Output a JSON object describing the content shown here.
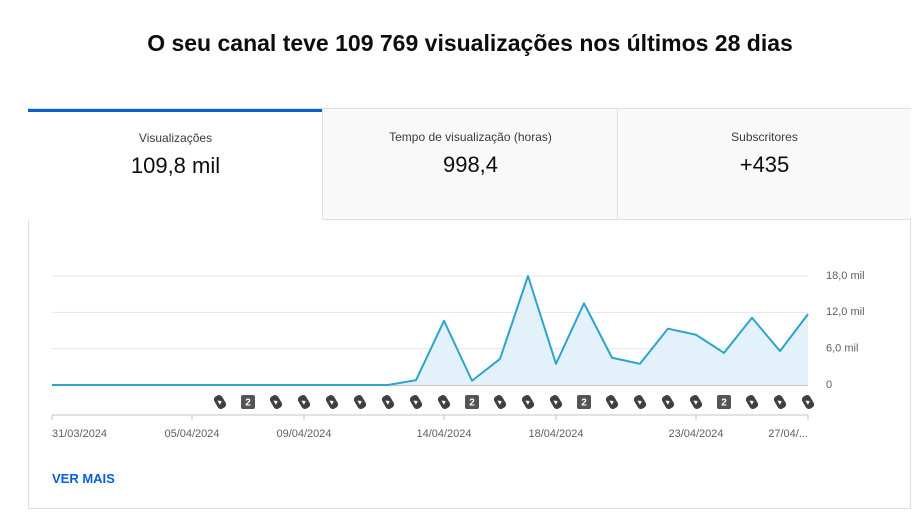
{
  "header": {
    "title": "O seu canal teve 109 769 visualizações nos últimos 28 dias"
  },
  "tabs": [
    {
      "label": "Visualizações",
      "value": "109,8 mil"
    },
    {
      "label": "Tempo de visualização (horas)",
      "value": "998,4"
    },
    {
      "label": "Subscritores",
      "value": "+435"
    }
  ],
  "chart_data": {
    "type": "area",
    "categories": [
      "31/03/2024",
      null,
      null,
      null,
      null,
      "05/04/2024",
      null,
      null,
      null,
      "09/04/2024",
      null,
      null,
      null,
      null,
      "14/04/2024",
      null,
      null,
      null,
      "18/04/2024",
      null,
      null,
      null,
      null,
      "23/04/2024",
      null,
      null,
      null,
      "27/04/..."
    ],
    "values": [
      0,
      0,
      0,
      0,
      0,
      0,
      0,
      0,
      0,
      0,
      0,
      0,
      0,
      800,
      10600,
      700,
      4300,
      18000,
      3500,
      13500,
      4500,
      3500,
      9300,
      8300,
      5300,
      11100,
      5600,
      11700
    ],
    "uploads": [
      null,
      null,
      null,
      null,
      null,
      null,
      1,
      2,
      1,
      1,
      1,
      1,
      1,
      1,
      1,
      2,
      1,
      1,
      1,
      2,
      1,
      1,
      1,
      1,
      2,
      1,
      1,
      1
    ],
    "color": "#2ea3cc",
    "ylim": [
      0,
      18000
    ],
    "yticks": [
      0,
      {
        "value": 6000,
        "label": "6,0 mil"
      },
      {
        "value": 12000,
        "label": "12,0 mil"
      },
      {
        "value": 18000,
        "label": "18,0 mil"
      }
    ],
    "grid": true
  },
  "link": "VER MAIS"
}
